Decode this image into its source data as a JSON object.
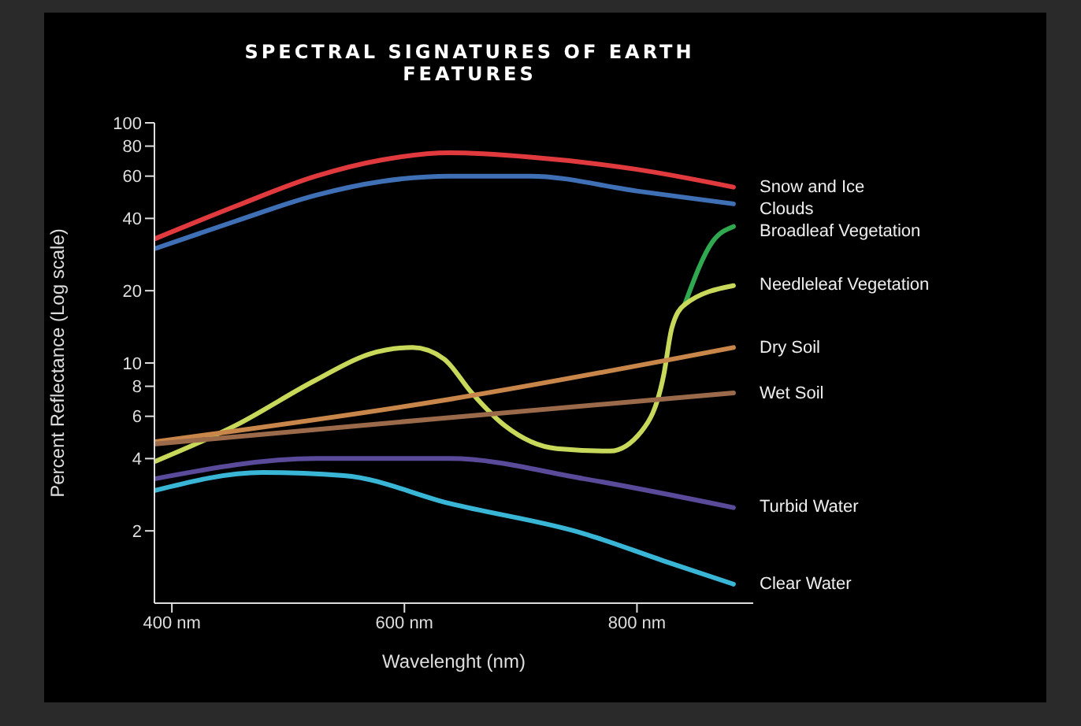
{
  "chart_data": {
    "type": "line",
    "title": "SPECTRAL SIGNATURES OF EARTH FEATURES",
    "xlabel": "Wavelenght (nm)",
    "ylabel": "Percent Reflectance (Log scale)",
    "log": "y",
    "xlim": [
      385,
      900
    ],
    "xticks": [
      {
        "value": 400,
        "label": "400 nm"
      },
      {
        "value": 600,
        "label": "600 nm"
      },
      {
        "value": 800,
        "label": "800 nm"
      }
    ],
    "ylim": [
      1,
      100
    ],
    "yticks": [
      2,
      4,
      6,
      8,
      10,
      20,
      40,
      60,
      80,
      100
    ],
    "marker": "none",
    "line_style": "solid",
    "series": [
      {
        "name": "Snow and Ice",
        "color": "#e03a3e",
        "x": [
          386,
          455,
          524,
          580,
          639,
          708,
          800,
          883
        ],
        "values": [
          33,
          45,
          60,
          70,
          75,
          72,
          64,
          54
        ]
      },
      {
        "name": "Clouds",
        "color": "#3f6fb5",
        "x": [
          386,
          455,
          524,
          580,
          639,
          708,
          800,
          883
        ],
        "values": [
          30,
          39,
          50,
          57,
          60,
          60,
          52,
          46
        ]
      },
      {
        "name": "Broadleaf Vegetation",
        "color": "#2fa84f",
        "x": [
          841,
          865,
          883
        ],
        "values": [
          17.5,
          32,
          37
        ]
      },
      {
        "name": "Needleleaf Vegetation",
        "color": "#c8d85a",
        "x": [
          386,
          455,
          524,
          570,
          607,
          634,
          658,
          686,
          731,
          777,
          804,
          823,
          830,
          841,
          883
        ],
        "values": [
          3.9,
          5.5,
          8.5,
          10.9,
          11.6,
          10.4,
          7.5,
          5.5,
          4.4,
          4.3,
          5.2,
          8.9,
          14,
          17.5,
          21
        ]
      },
      {
        "name": "Dry Soil",
        "color": "#c8864a",
        "x": [
          386,
          634,
          883
        ],
        "values": [
          4.7,
          7,
          11.6
        ]
      },
      {
        "name": "Wet Soil",
        "color": "#9a6a4a",
        "x": [
          386,
          634,
          883
        ],
        "values": [
          4.6,
          5.9,
          7.5
        ]
      },
      {
        "name": "Turbid Water",
        "color": "#5a4a9a",
        "x": [
          386,
          524,
          639,
          754,
          883
        ],
        "values": [
          3.3,
          4,
          4,
          3.3,
          2.5
        ]
      },
      {
        "name": "Clear Water",
        "color": "#39b6d6",
        "x": [
          386,
          478,
          548,
          639,
          754,
          823,
          883
        ],
        "values": [
          2.95,
          3.5,
          3.4,
          2.6,
          1.95,
          1.5,
          1.2
        ]
      }
    ]
  }
}
